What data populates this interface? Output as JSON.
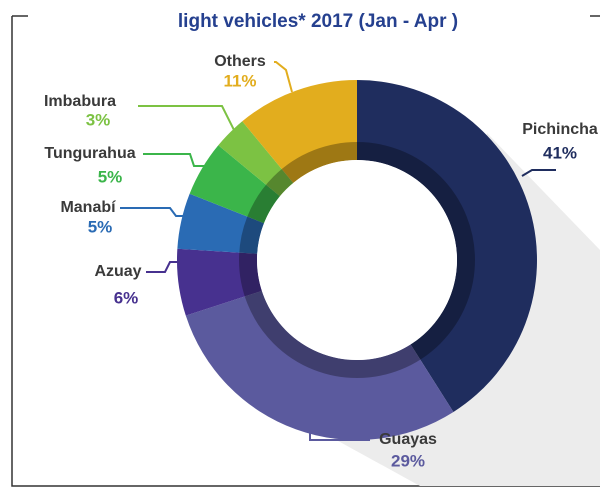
{
  "chart_data": {
    "type": "donut",
    "title": "light vehicles* 2017 (Jan - Apr )",
    "categories": [
      "Pichincha",
      "Guayas",
      "Azuay",
      "Manabí",
      "Tungurahua",
      "Imbabura",
      "Others"
    ],
    "values": [
      41,
      29,
      6,
      5,
      5,
      3,
      11
    ],
    "value_labels": [
      "41%",
      "29%",
      "6%",
      "5%",
      "5%",
      "3%",
      "11%"
    ],
    "colors": [
      "#1f2d5e",
      "#5b5a9e",
      "#47318f",
      "#2a6bb4",
      "#3bb54a",
      "#7cc243",
      "#e2ad1e"
    ]
  }
}
